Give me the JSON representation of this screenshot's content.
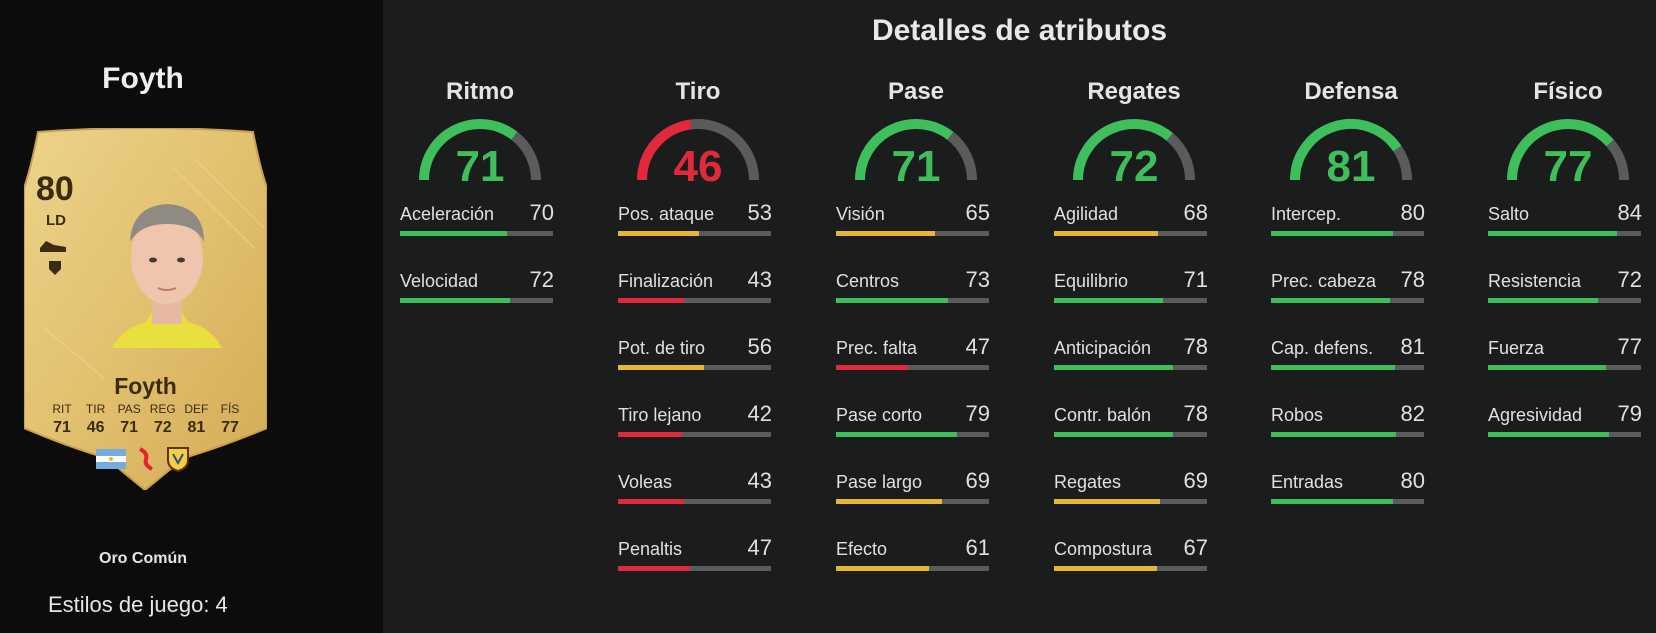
{
  "player": {
    "name": "Foyth",
    "rating": "80",
    "position": "LD",
    "card_type": "Oro Común",
    "playstyles": "Estilos de juego: 4",
    "card_stats": [
      {
        "label": "RIT",
        "value": "71"
      },
      {
        "label": "TIR",
        "value": "46"
      },
      {
        "label": "PAS",
        "value": "71"
      },
      {
        "label": "REG",
        "value": "72"
      },
      {
        "label": "DEF",
        "value": "81"
      },
      {
        "label": "FÍS",
        "value": "77"
      }
    ]
  },
  "title": "Detalles de atributos",
  "colors": {
    "green": "#3fbf5c",
    "yellow": "#e6b733",
    "red": "#e02a3c",
    "track": "#5a5c5c"
  },
  "categories": [
    {
      "name": "Ritmo",
      "value": 71,
      "attributes": [
        {
          "name": "Aceleración",
          "value": 70
        },
        {
          "name": "Velocidad",
          "value": 72
        }
      ]
    },
    {
      "name": "Tiro",
      "value": 46,
      "attributes": [
        {
          "name": "Pos. ataque",
          "value": 53
        },
        {
          "name": "Finalización",
          "value": 43
        },
        {
          "name": "Pot. de tiro",
          "value": 56
        },
        {
          "name": "Tiro lejano",
          "value": 42
        },
        {
          "name": "Voleas",
          "value": 43
        },
        {
          "name": "Penaltis",
          "value": 47
        }
      ]
    },
    {
      "name": "Pase",
      "value": 71,
      "attributes": [
        {
          "name": "Visión",
          "value": 65
        },
        {
          "name": "Centros",
          "value": 73
        },
        {
          "name": "Prec. falta",
          "value": 47
        },
        {
          "name": "Pase corto",
          "value": 79
        },
        {
          "name": "Pase largo",
          "value": 69
        },
        {
          "name": "Efecto",
          "value": 61
        }
      ]
    },
    {
      "name": "Regates",
      "value": 72,
      "attributes": [
        {
          "name": "Agilidad",
          "value": 68
        },
        {
          "name": "Equilibrio",
          "value": 71
        },
        {
          "name": "Anticipación",
          "value": 78
        },
        {
          "name": "Contr. balón",
          "value": 78
        },
        {
          "name": "Regates",
          "value": 69
        },
        {
          "name": "Compostura",
          "value": 67
        }
      ]
    },
    {
      "name": "Defensa",
      "value": 81,
      "attributes": [
        {
          "name": "Intercep.",
          "value": 80
        },
        {
          "name": "Prec. cabeza",
          "value": 78
        },
        {
          "name": "Cap. defens.",
          "value": 81
        },
        {
          "name": "Robos",
          "value": 82
        },
        {
          "name": "Entradas",
          "value": 80
        }
      ]
    },
    {
      "name": "Físico",
      "value": 77,
      "attributes": [
        {
          "name": "Salto",
          "value": 84
        },
        {
          "name": "Resistencia",
          "value": 72
        },
        {
          "name": "Fuerza",
          "value": 77
        },
        {
          "name": "Agresividad",
          "value": 79
        }
      ]
    }
  ]
}
